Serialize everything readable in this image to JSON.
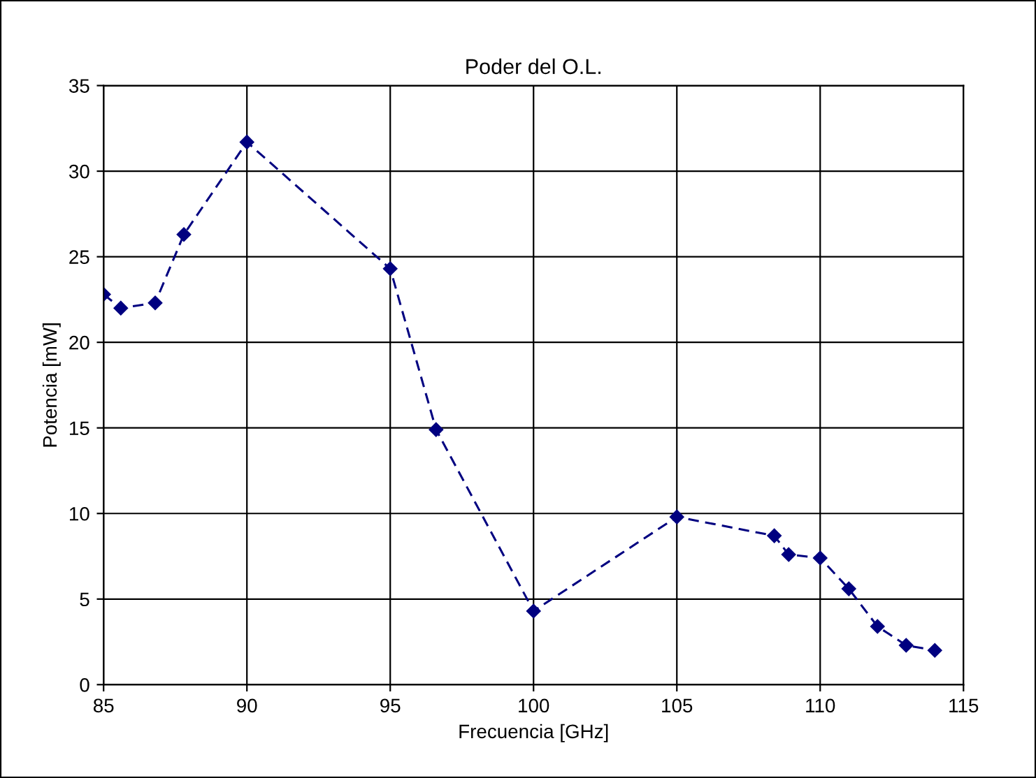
{
  "chart_data": {
    "type": "line",
    "title": "Poder del O.L.",
    "xlabel": "Frecuencia [GHz]",
    "ylabel": "Potencia [mW]",
    "series": [
      {
        "color": "#000080",
        "x": [
          85,
          85.6,
          86.8,
          87.8,
          90,
          95,
          96.6,
          100,
          105,
          108.4,
          108.9,
          110,
          111,
          112,
          113,
          114
        ],
        "values": [
          22.8,
          22.0,
          22.3,
          26.3,
          31.7,
          24.3,
          14.9,
          4.3,
          9.8,
          8.7,
          7.6,
          7.4,
          5.6,
          3.4,
          2.3,
          2.0
        ]
      }
    ],
    "xlim": [
      85,
      115
    ],
    "xticks": [
      85,
      90,
      95,
      100,
      105,
      110,
      115
    ],
    "ylim": [
      0,
      35
    ],
    "yticks": [
      0,
      5,
      10,
      15,
      20,
      25,
      30,
      35
    ],
    "grid": true,
    "marker": "diamond",
    "line_style": "dashed"
  }
}
